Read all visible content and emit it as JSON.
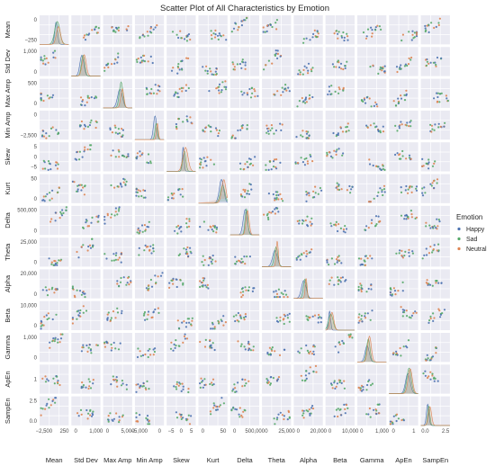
{
  "chart_data": {
    "type": "scatter",
    "title": "Scatter Plot of All Characteristics by Emotion",
    "variables": [
      "Mean",
      "Std Dev",
      "Max Amp",
      "Min Amp",
      "Skew",
      "Kurt",
      "Delta",
      "Theta",
      "Alpha",
      "Beta",
      "Gamma",
      "ApEn",
      "SampEn"
    ],
    "diagonal": "kde",
    "grid": true,
    "legend": {
      "title": "Emotion",
      "placement": "right",
      "entries": [
        {
          "name": "Happy",
          "color": "#4c72b0"
        },
        {
          "name": "Sad",
          "color": "#55a868"
        },
        {
          "name": "Neutral",
          "color": "#dd8452"
        }
      ]
    },
    "y_tick_labels": [
      [
        "0",
        "−250"
      ],
      [
        "1,000",
        "0"
      ],
      [
        "500",
        "0"
      ],
      [
        "0",
        "−2,500"
      ],
      [
        "5",
        "0",
        "−5"
      ],
      [
        "50",
        "0"
      ],
      [
        "500,000",
        "0"
      ],
      [
        "25,000",
        "0"
      ],
      [
        "20,000",
        "0"
      ],
      [
        "10,000",
        "0"
      ],
      [
        "1,000",
        "0"
      ],
      [
        "1"
      ],
      [
        "2.5",
        "0.0"
      ]
    ],
    "x_tick_labels": [
      [
        "−2,500",
        "250"
      ],
      [
        "0",
        "1,000"
      ],
      [
        "0",
        "5,000"
      ],
      [
        "−5,000",
        "0"
      ],
      [
        "−5",
        "0",
        "5"
      ],
      [
        "0",
        "50"
      ],
      [
        "0",
        "500,000"
      ],
      [
        "0",
        "25,000"
      ],
      [
        "0",
        "20,000"
      ],
      [
        "0",
        "10,000"
      ],
      [
        "0",
        "1,000"
      ],
      [
        "0",
        "1"
      ],
      [
        "0.0",
        "2.5"
      ]
    ],
    "approximate_ranges": {
      "Mean": [
        -2500,
        400
      ],
      "Std Dev": [
        0,
        1200
      ],
      "Max Amp": [
        0,
        6500
      ],
      "Min Amp": [
        -5500,
        0
      ],
      "Skew": [
        -7,
        7
      ],
      "Kurt": [
        -5,
        60
      ],
      "Delta": [
        0,
        650000
      ],
      "Theta": [
        0,
        32000
      ],
      "Alpha": [
        0,
        24000
      ],
      "Beta": [
        0,
        12500
      ],
      "Gamma": [
        0,
        1300
      ],
      "ApEn": [
        0,
        1.3
      ],
      "SampEn": [
        0,
        3
      ]
    }
  }
}
